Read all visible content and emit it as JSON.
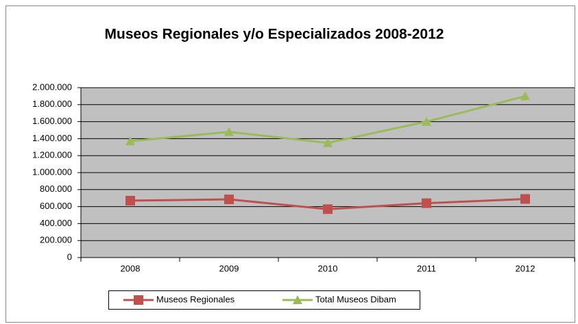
{
  "chart_data": {
    "type": "line",
    "title": "Museos Regionales y/o Especializados 2008-2012",
    "categories": [
      "2008",
      "2009",
      "2010",
      "2011",
      "2012"
    ],
    "series": [
      {
        "name": "Museos Regionales",
        "color": "#c0504d",
        "marker": "square",
        "values": [
          670000,
          685000,
          570000,
          640000,
          690000
        ]
      },
      {
        "name": "Total Museos Dibam",
        "color": "#9bbb59",
        "marker": "triangle",
        "values": [
          1370000,
          1480000,
          1350000,
          1600000,
          1900000
        ]
      }
    ],
    "ylim": [
      0,
      2000000
    ],
    "yticks": [
      0,
      {
        "value": 200000,
        "label": "200.000"
      },
      {
        "value": 400000,
        "label": "400.000"
      },
      {
        "value": 600000,
        "label": "600.000"
      },
      {
        "value": 800000,
        "label": "800.000"
      },
      {
        "value": 1000000,
        "label": "1.000.000"
      },
      {
        "value": 1200000,
        "label": "1.200.000"
      },
      {
        "value": 1400000,
        "label": "1.400.000"
      },
      {
        "value": 1600000,
        "label": "1.600.000"
      },
      {
        "value": 1800000,
        "label": "1.800.000"
      },
      {
        "value": 2000000,
        "label": "2.000.000"
      }
    ],
    "grid": true,
    "legend": "bottom",
    "plot_background": "#c0c0c0"
  }
}
